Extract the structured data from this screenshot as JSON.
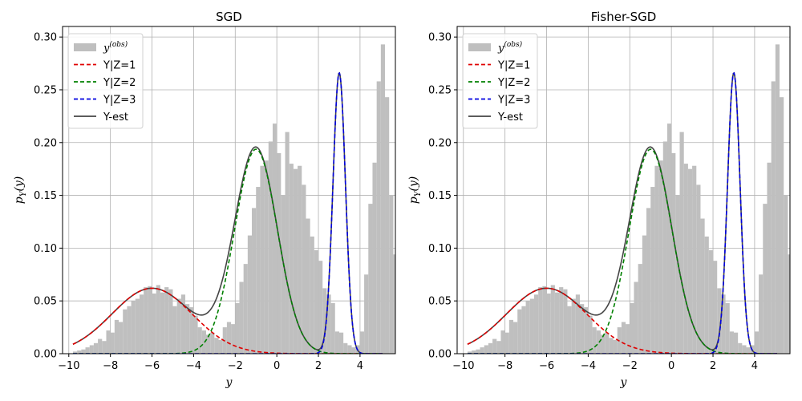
{
  "chart_data": [
    {
      "type": "histogram",
      "title": "SGD",
      "xlabel": "y",
      "ylabel": "p_Y(y)",
      "xlim": [
        -10.3,
        5.7
      ],
      "ylim": [
        0,
        0.31
      ],
      "xticks": [
        -10,
        -8,
        -6,
        -4,
        -2,
        0,
        2,
        4
      ],
      "yticks": [
        0.0,
        0.05,
        0.1,
        0.15,
        0.2,
        0.25,
        0.3
      ],
      "xtick_labels": [
        "−10",
        "−8",
        "−6",
        "−4",
        "−2",
        "0",
        "2",
        "4"
      ],
      "ytick_labels": [
        "0.00",
        "0.05",
        "0.10",
        "0.15",
        "0.20",
        "0.25",
        "0.30"
      ],
      "grid": true,
      "legend_position": "upper-left",
      "histogram": {
        "name": "y",
        "name_superscript": "(obs)",
        "color": "#bfbfbf",
        "bin_start": -9.8,
        "bin_width": 0.2,
        "heights": [
          0.002,
          0.003,
          0.004,
          0.006,
          0.008,
          0.01,
          0.014,
          0.012,
          0.022,
          0.02,
          0.032,
          0.03,
          0.042,
          0.045,
          0.05,
          0.052,
          0.056,
          0.063,
          0.064,
          0.057,
          0.065,
          0.058,
          0.063,
          0.061,
          0.045,
          0.052,
          0.056,
          0.047,
          0.044,
          0.036,
          0.025,
          0.022,
          0.018,
          0.02,
          0.015,
          0.013,
          0.025,
          0.03,
          0.028,
          0.048,
          0.068,
          0.085,
          0.112,
          0.138,
          0.158,
          0.178,
          0.183,
          0.201,
          0.218,
          0.19,
          0.15,
          0.21,
          0.18,
          0.175,
          0.178,
          0.16,
          0.128,
          0.111,
          0.098,
          0.088,
          0.062,
          0.056,
          0.048,
          0.021,
          0.02,
          0.01,
          0.008,
          0.006,
          0.008,
          0.021,
          0.075,
          0.142,
          0.181,
          0.258,
          0.293,
          0.243,
          0.15,
          0.094,
          0.06,
          0.023,
          0.007,
          0.004,
          0.002,
          0.001
        ]
      },
      "series": [
        {
          "name": "Y|Z=1",
          "style": "dashed",
          "color": "#e00000",
          "weight": 0.3,
          "mean": -6.0,
          "sd": 1.93
        },
        {
          "name": "Y|Z=2",
          "style": "dashed",
          "color": "#008000",
          "weight": 0.5,
          "mean": -1.0,
          "sd": 1.03
        },
        {
          "name": "Y|Z=3",
          "style": "dashed",
          "color": "#0000e0",
          "weight": 0.2,
          "mean": 3.0,
          "sd": 0.3
        },
        {
          "name": "Y-est",
          "style": "solid",
          "color": "#444444",
          "composite": true
        }
      ]
    },
    {
      "type": "histogram",
      "title": "Fisher-SGD",
      "xlabel": "y",
      "ylabel": "p_Y(y)",
      "xlim": [
        -10.3,
        5.7
      ],
      "ylim": [
        0,
        0.31
      ],
      "xticks": [
        -10,
        -8,
        -6,
        -4,
        -2,
        0,
        2,
        4
      ],
      "yticks": [
        0.0,
        0.05,
        0.1,
        0.15,
        0.2,
        0.25,
        0.3
      ],
      "xtick_labels": [
        "−10",
        "−8",
        "−6",
        "−4",
        "−2",
        "0",
        "2",
        "4"
      ],
      "ytick_labels": [
        "0.00",
        "0.05",
        "0.10",
        "0.15",
        "0.20",
        "0.25",
        "0.30"
      ],
      "grid": true,
      "legend_position": "upper-left",
      "histogram": {
        "name": "y",
        "name_superscript": "(obs)",
        "color": "#bfbfbf",
        "bin_start": -9.8,
        "bin_width": 0.2,
        "heights": [
          0.002,
          0.003,
          0.004,
          0.006,
          0.008,
          0.01,
          0.014,
          0.012,
          0.022,
          0.02,
          0.032,
          0.03,
          0.042,
          0.045,
          0.05,
          0.052,
          0.056,
          0.063,
          0.064,
          0.057,
          0.065,
          0.058,
          0.063,
          0.061,
          0.045,
          0.052,
          0.056,
          0.047,
          0.044,
          0.036,
          0.025,
          0.022,
          0.018,
          0.02,
          0.015,
          0.013,
          0.025,
          0.03,
          0.028,
          0.048,
          0.068,
          0.085,
          0.112,
          0.138,
          0.158,
          0.178,
          0.183,
          0.201,
          0.218,
          0.19,
          0.15,
          0.21,
          0.18,
          0.175,
          0.178,
          0.16,
          0.128,
          0.111,
          0.098,
          0.088,
          0.062,
          0.056,
          0.048,
          0.021,
          0.02,
          0.01,
          0.008,
          0.006,
          0.008,
          0.021,
          0.075,
          0.142,
          0.181,
          0.258,
          0.293,
          0.243,
          0.15,
          0.094,
          0.06,
          0.023,
          0.007,
          0.004,
          0.002,
          0.001
        ]
      },
      "series": [
        {
          "name": "Y|Z=1",
          "style": "dashed",
          "color": "#e00000",
          "weight": 0.3,
          "mean": -6.0,
          "sd": 1.93
        },
        {
          "name": "Y|Z=2",
          "style": "dashed",
          "color": "#008000",
          "weight": 0.5,
          "mean": -1.0,
          "sd": 1.03
        },
        {
          "name": "Y|Z=3",
          "style": "dashed",
          "color": "#0000e0",
          "weight": 0.2,
          "mean": 3.0,
          "sd": 0.3
        },
        {
          "name": "Y-est",
          "style": "solid",
          "color": "#444444",
          "composite": true
        }
      ]
    }
  ]
}
